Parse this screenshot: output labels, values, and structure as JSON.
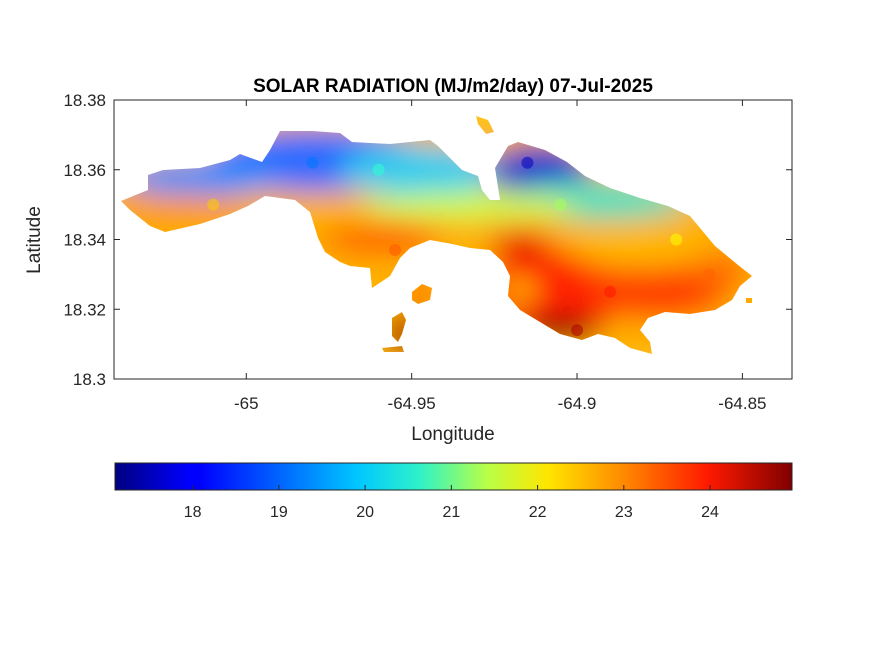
{
  "chart_data": {
    "type": "heatmap",
    "title": "SOLAR RADIATION (MJ/m2/day) 07-Jul-2025",
    "xlabel": "Longitude",
    "ylabel": "Latitude",
    "xlim": [
      -65.04,
      -64.835
    ],
    "ylim": [
      18.3,
      18.38
    ],
    "x_ticks": [
      -65,
      -64.95,
      -64.9,
      -64.85
    ],
    "x_tick_labels": [
      "-65",
      "-64.95",
      "-64.9",
      "-64.85"
    ],
    "y_ticks": [
      18.3,
      18.32,
      18.34,
      18.36,
      18.38
    ],
    "y_tick_labels": [
      "18.3",
      "18.32",
      "18.34",
      "18.36",
      "18.38"
    ],
    "colormap": "jet",
    "colorbar": {
      "orientation": "horizontal",
      "range": [
        17.1,
        24.95
      ],
      "ticks": [
        18,
        19,
        20,
        21,
        22,
        23,
        24
      ],
      "tick_labels": [
        "18",
        "19",
        "20",
        "21",
        "22",
        "23",
        "24"
      ]
    },
    "regions": [
      {
        "name": "",
        "lon": -65.01,
        "lat": 18.35,
        "value": 22.4
      },
      {
        "name": "",
        "lon": -64.98,
        "lat": 18.362,
        "value": 19.0
      },
      {
        "name": "",
        "lon": -64.96,
        "lat": 18.36,
        "value": 20.4
      },
      {
        "name": "",
        "lon": -64.955,
        "lat": 18.337,
        "value": 23.3
      },
      {
        "name": "",
        "lon": -64.915,
        "lat": 18.362,
        "value": 17.6
      },
      {
        "name": "",
        "lon": -64.905,
        "lat": 18.35,
        "value": 21.3
      },
      {
        "name": "",
        "lon": -64.89,
        "lat": 18.325,
        "value": 23.8
      },
      {
        "name": "",
        "lon": -64.9,
        "lat": 18.314,
        "value": 24.6
      },
      {
        "name": "",
        "lon": -64.86,
        "lat": 18.33,
        "value": 23.2
      },
      {
        "name": "",
        "lon": -64.87,
        "lat": 18.34,
        "value": 22.0
      }
    ]
  }
}
